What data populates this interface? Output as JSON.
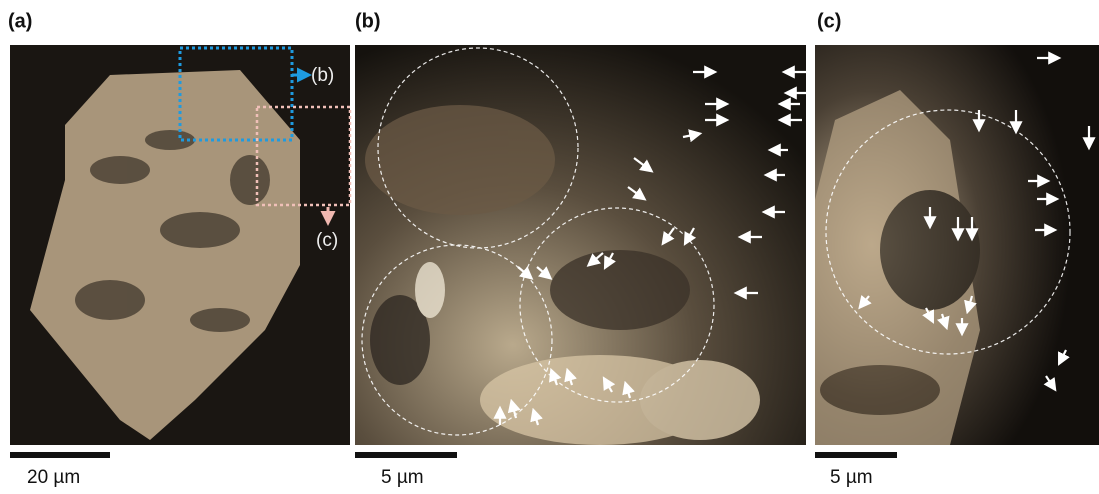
{
  "panels": [
    {
      "label": "(a)",
      "scale_bar": "20 µm",
      "insets": [
        {
          "label": "(b)"
        },
        {
          "label": "(c)"
        }
      ]
    },
    {
      "label": "(b)",
      "scale_bar": "5 µm"
    },
    {
      "label": "(c)",
      "scale_bar": "5 µm"
    }
  ]
}
